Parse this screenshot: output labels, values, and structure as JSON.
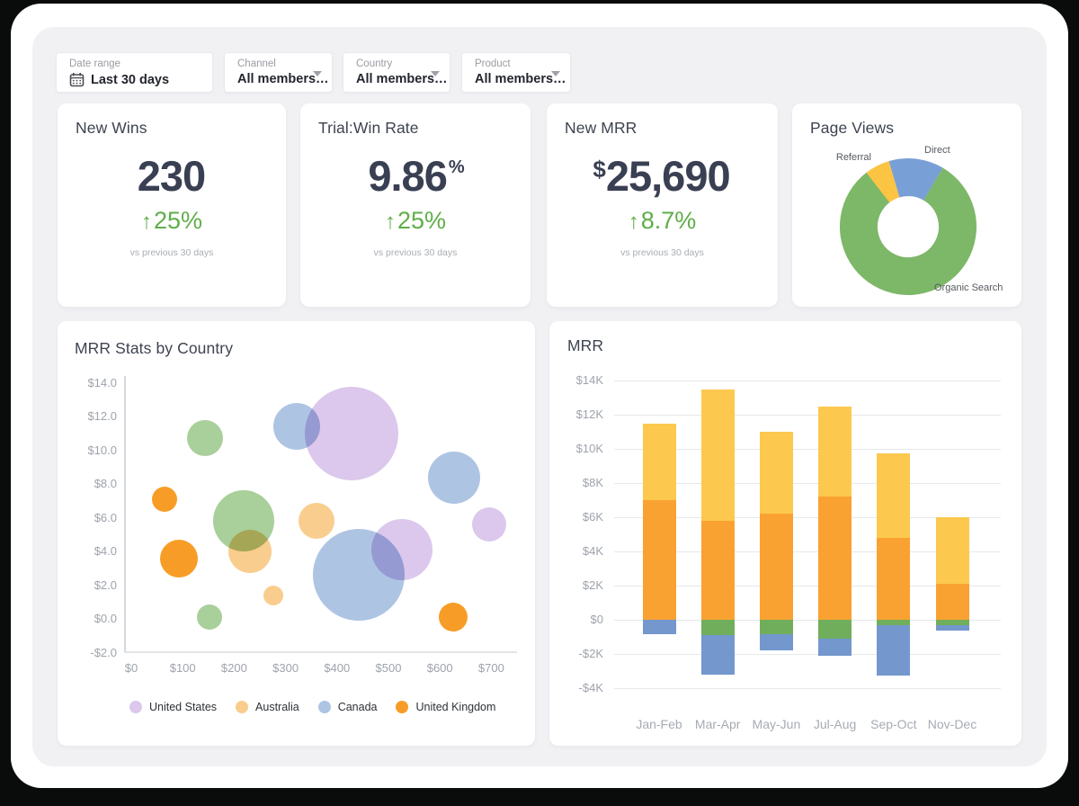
{
  "filters": {
    "items": [
      {
        "label": "Date range",
        "value": "Last 30 days",
        "icon": "calendar-icon",
        "caret": false
      },
      {
        "label": "Channel",
        "value": "All members…",
        "icon": null,
        "caret": true
      },
      {
        "label": "Country",
        "value": "All members…",
        "icon": null,
        "caret": true
      },
      {
        "label": "Product",
        "value": "All members…",
        "icon": null,
        "caret": true
      }
    ]
  },
  "kpi_cards": [
    {
      "title": "New Wins",
      "prefix": "",
      "value": "230",
      "suffix": "",
      "arrow": "↑",
      "delta": "25%",
      "note": "vs previous 30 days"
    },
    {
      "title": "Trial:Win Rate",
      "prefix": "",
      "value": "9.86",
      "suffix": "%",
      "arrow": "↑",
      "delta": "25%",
      "note": "vs previous 30 days"
    },
    {
      "title": "New MRR",
      "prefix": "$",
      "value": "25,690",
      "suffix": "",
      "arrow": "↑",
      "delta": "8.7%",
      "note": "vs previous 30 days"
    }
  ],
  "chart_data": [
    {
      "type": "pie",
      "title": "Page Views",
      "donut": true,
      "start_angle_deg": -38,
      "slices": [
        {
          "label": "Referral",
          "value": 6,
          "color": "#fcc443"
        },
        {
          "label": "Direct",
          "value": 13,
          "color": "#799fd7"
        },
        {
          "label": "Organic Search",
          "value": 81,
          "color": "#7db768"
        }
      ]
    },
    {
      "type": "scatter",
      "title": "MRR Stats by Country",
      "x_ticks": [
        {
          "v": 0,
          "label": "$0"
        },
        {
          "v": 100,
          "label": "$100"
        },
        {
          "v": 200,
          "label": "$200"
        },
        {
          "v": 300,
          "label": "$300"
        },
        {
          "v": 400,
          "label": "$400"
        },
        {
          "v": 500,
          "label": "$500"
        },
        {
          "v": 600,
          "label": "$600"
        },
        {
          "v": 700,
          "label": "$700"
        }
      ],
      "y_ticks": [
        {
          "v": 14,
          "label": "$14.0"
        },
        {
          "v": 12,
          "label": "$12.0"
        },
        {
          "v": 10,
          "label": "$10.0"
        },
        {
          "v": 8,
          "label": "$8.0"
        },
        {
          "v": 6,
          "label": "$6.0"
        },
        {
          "v": 4,
          "label": "$4.0"
        },
        {
          "v": 2,
          "label": "$2.0"
        },
        {
          "v": 0,
          "label": "$0.0"
        },
        {
          "v": -2,
          "label": "-$2.0"
        }
      ],
      "xlim": [
        0,
        750
      ],
      "ylim": [
        -2,
        14
      ],
      "grid": false,
      "legend_position": "bottom",
      "series": [
        {
          "name": "United States",
          "color": "#dcc8ec",
          "in_legend": true,
          "points": [
            {
              "x": 428,
              "y": 11.0,
              "r": 52
            },
            {
              "x": 527,
              "y": 4.1,
              "r": 34
            },
            {
              "x": 696,
              "y": 5.6,
              "r": 19
            }
          ]
        },
        {
          "name": "Australia",
          "color": "#f9cd8e",
          "in_legend": true,
          "points": [
            {
              "x": 231,
              "y": 4.0,
              "r": 24
            },
            {
              "x": 360,
              "y": 5.8,
              "r": 20
            },
            {
              "x": 276,
              "y": 1.4,
              "r": 11
            }
          ]
        },
        {
          "name": "Canada",
          "color": "#aec4e3",
          "in_legend": true,
          "points": [
            {
              "x": 321,
              "y": 11.4,
              "r": 26
            },
            {
              "x": 628,
              "y": 8.4,
              "r": 29
            },
            {
              "x": 442,
              "y": 2.6,
              "r": 51
            }
          ]
        },
        {
          "name": "United Kingdom",
          "color": "#f79d27",
          "in_legend": true,
          "points": [
            {
              "x": 64,
              "y": 7.1,
              "r": 14
            },
            {
              "x": 93,
              "y": 3.6,
              "r": 21
            },
            {
              "x": 625,
              "y": 0.1,
              "r": 16
            }
          ]
        },
        {
          "name": "",
          "color": "#a9cf9b",
          "in_legend": false,
          "points": [
            {
              "x": 144,
              "y": 10.7,
              "r": 20
            },
            {
              "x": 218,
              "y": 5.8,
              "r": 34
            },
            {
              "x": 152,
              "y": 0.1,
              "r": 14
            }
          ]
        }
      ]
    },
    {
      "type": "bar",
      "stacked": true,
      "title": "MRR",
      "categories": [
        "Jan-Feb",
        "Mar-Apr",
        "May-Jun",
        "Jul-Aug",
        "Sep-Oct",
        "Nov-Dec"
      ],
      "y_ticks": [
        {
          "v": 14,
          "label": "$14K"
        },
        {
          "v": 12,
          "label": "$12K"
        },
        {
          "v": 10,
          "label": "$10K"
        },
        {
          "v": 8,
          "label": "$8K"
        },
        {
          "v": 6,
          "label": "$6K"
        },
        {
          "v": 4,
          "label": "$4K"
        },
        {
          "v": 2,
          "label": "$2K"
        },
        {
          "v": 0,
          "label": "$0"
        },
        {
          "v": -2,
          "label": "-$2K"
        },
        {
          "v": -4,
          "label": "-$4K"
        }
      ],
      "ylim": [
        -4,
        14
      ],
      "units": "K",
      "grid": true,
      "series": [
        {
          "name": "",
          "color": "#f9a232",
          "values": [
            7.0,
            5.8,
            6.2,
            7.2,
            4.8,
            2.1
          ]
        },
        {
          "name": "",
          "color": "#fcc84e",
          "values": [
            4.5,
            7.7,
            4.8,
            5.3,
            4.95,
            3.9
          ]
        },
        {
          "name": "",
          "color": "#70ae5c",
          "values": [
            0,
            -0.9,
            -0.85,
            -1.1,
            -0.3,
            -0.3
          ]
        },
        {
          "name": "",
          "color": "#7497ce",
          "values": [
            -0.85,
            -2.3,
            -0.95,
            -1.0,
            -2.95,
            -0.35
          ]
        }
      ]
    }
  ],
  "colors": {
    "accent_green": "#5fae49",
    "value_text": "#3a4053",
    "canvas_bg": "#f1f1f4"
  }
}
